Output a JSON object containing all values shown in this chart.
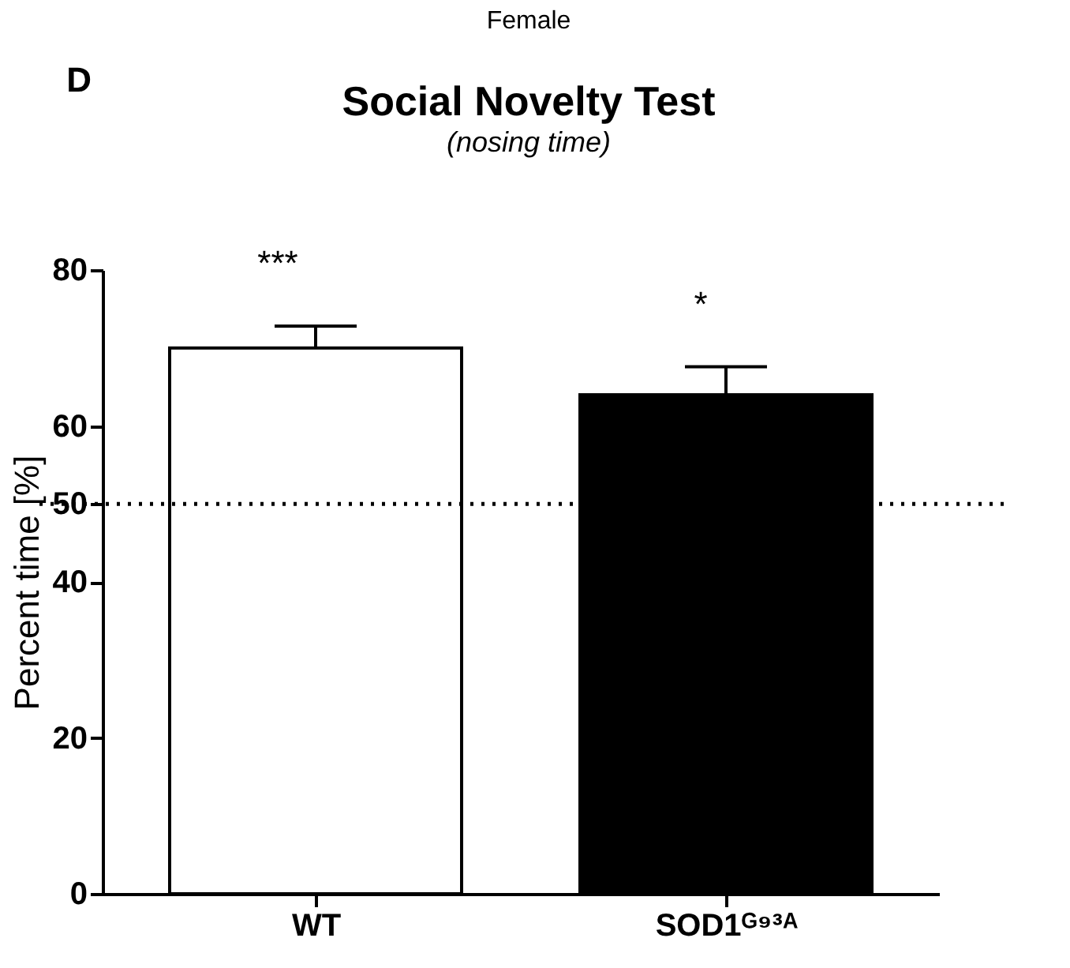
{
  "chart_data": {
    "type": "bar",
    "title": "Social Novelty Test",
    "subtitle": "(nosing time)",
    "ylabel": "Percent time [%]",
    "categories": [
      "WT",
      "SOD1ᴳ⁹³ᴬ"
    ],
    "values": [
      70,
      64
    ],
    "colors": [
      "#ffffff",
      "#000000"
    ],
    "errors": [
      [
        70,
        72.8
      ],
      [
        64,
        67.6
      ]
    ],
    "ylim": [
      0,
      80
    ],
    "yticks": [
      0,
      20,
      40,
      50,
      60,
      80
    ],
    "ref_lines": [
      {
        "axis": "y",
        "value": 50,
        "label": null,
        "line_style": "dotted",
        "color": "#000000"
      }
    ],
    "annotations": [
      "Female",
      "D",
      "***",
      "*"
    ],
    "grid": false
  }
}
